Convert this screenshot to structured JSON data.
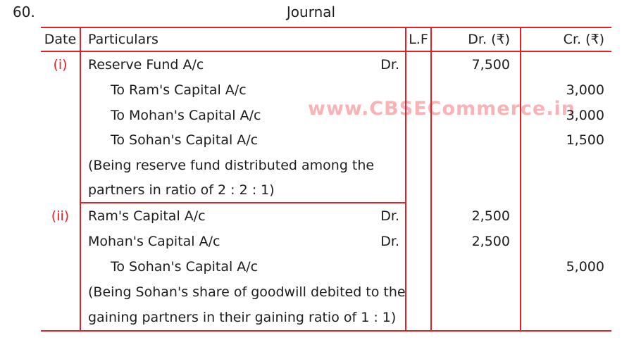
{
  "page": {
    "question_number": "60.",
    "title": "Journal"
  },
  "watermark": {
    "text": "www.CBSECommerce.in"
  },
  "colors": {
    "border": "#e02128",
    "text": "#1d1d1f",
    "entry_label": "#ed1c24",
    "watermark": "#ed1c24"
  },
  "table": {
    "headers": {
      "date": "Date",
      "particulars": "Particulars",
      "lf": "L.F",
      "dr": "Dr. (₹)",
      "cr": "Cr. (₹)"
    },
    "entries": [
      {
        "date_label": "(i)",
        "lines": [
          {
            "particulars": "Reserve Fund A/c",
            "suffix": "Dr.",
            "dr": "7,500"
          },
          {
            "particulars": "To Ram's Capital A/c",
            "cr": "3,000"
          },
          {
            "particulars": "To Mohan's Capital A/c",
            "cr": "3,000"
          },
          {
            "particulars": "To Sohan's Capital A/c",
            "cr": "1,500"
          },
          {
            "particulars": "(Being reserve fund distributed among the"
          },
          {
            "particulars": "partners in ratio of 2 : 2 : 1)"
          }
        ]
      },
      {
        "date_label": "(ii)",
        "lines": [
          {
            "particulars": "Ram's Capital A/c",
            "suffix": "Dr.",
            "dr": "2,500"
          },
          {
            "particulars": "Mohan's Capital A/c",
            "suffix": "Dr.",
            "dr": "2,500"
          },
          {
            "particulars": "To Sohan's Capital A/c",
            "cr": "5,000"
          },
          {
            "particulars": "(Being Sohan's share of goodwill debited to the"
          },
          {
            "particulars": "gaining partners in their gaining ratio of 1 : 1)"
          }
        ]
      }
    ]
  }
}
